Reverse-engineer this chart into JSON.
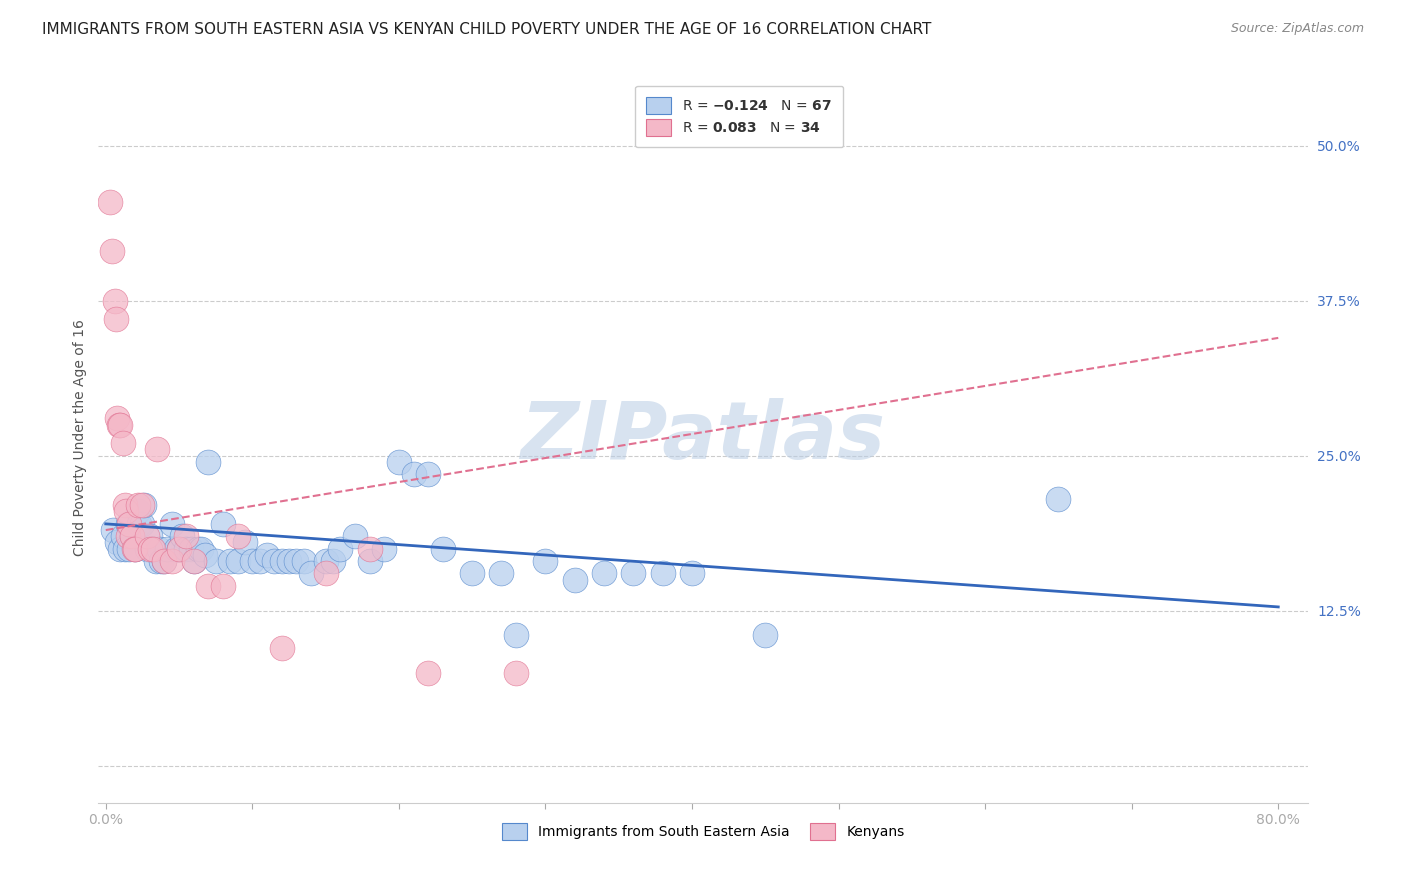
{
  "title": "IMMIGRANTS FROM SOUTH EASTERN ASIA VS KENYAN CHILD POVERTY UNDER THE AGE OF 16 CORRELATION CHART",
  "source": "Source: ZipAtlas.com",
  "ylabel": "Child Poverty Under the Age of 16",
  "y_ticks": [
    0.0,
    0.125,
    0.25,
    0.375,
    0.5
  ],
  "y_tick_labels": [
    "",
    "12.5%",
    "25.0%",
    "37.5%",
    "50.0%"
  ],
  "xlim": [
    -0.005,
    0.82
  ],
  "ylim": [
    -0.03,
    0.56
  ],
  "blue_scatter_x": [
    0.005,
    0.008,
    0.01,
    0.012,
    0.013,
    0.015,
    0.016,
    0.018,
    0.02,
    0.022,
    0.023,
    0.025,
    0.026,
    0.028,
    0.03,
    0.032,
    0.034,
    0.036,
    0.038,
    0.04,
    0.042,
    0.045,
    0.048,
    0.05,
    0.052,
    0.055,
    0.058,
    0.06,
    0.063,
    0.065,
    0.068,
    0.07,
    0.075,
    0.08,
    0.085,
    0.09,
    0.095,
    0.1,
    0.105,
    0.11,
    0.115,
    0.12,
    0.125,
    0.13,
    0.135,
    0.14,
    0.15,
    0.155,
    0.16,
    0.17,
    0.18,
    0.19,
    0.2,
    0.21,
    0.22,
    0.23,
    0.25,
    0.27,
    0.28,
    0.3,
    0.32,
    0.34,
    0.36,
    0.38,
    0.4,
    0.45,
    0.65
  ],
  "blue_scatter_y": [
    0.19,
    0.18,
    0.175,
    0.185,
    0.175,
    0.195,
    0.175,
    0.185,
    0.175,
    0.205,
    0.195,
    0.195,
    0.21,
    0.175,
    0.185,
    0.175,
    0.165,
    0.175,
    0.165,
    0.165,
    0.175,
    0.195,
    0.175,
    0.175,
    0.185,
    0.175,
    0.175,
    0.165,
    0.175,
    0.175,
    0.17,
    0.245,
    0.165,
    0.195,
    0.165,
    0.165,
    0.18,
    0.165,
    0.165,
    0.17,
    0.165,
    0.165,
    0.165,
    0.165,
    0.165,
    0.155,
    0.165,
    0.165,
    0.175,
    0.185,
    0.165,
    0.175,
    0.245,
    0.235,
    0.235,
    0.175,
    0.155,
    0.155,
    0.105,
    0.165,
    0.15,
    0.155,
    0.155,
    0.155,
    0.155,
    0.105,
    0.215
  ],
  "pink_scatter_x": [
    0.003,
    0.004,
    0.006,
    0.007,
    0.008,
    0.009,
    0.01,
    0.012,
    0.013,
    0.014,
    0.015,
    0.016,
    0.018,
    0.019,
    0.02,
    0.022,
    0.025,
    0.028,
    0.03,
    0.032,
    0.035,
    0.04,
    0.045,
    0.05,
    0.055,
    0.06,
    0.07,
    0.08,
    0.09,
    0.12,
    0.15,
    0.18,
    0.22,
    0.28
  ],
  "pink_scatter_y": [
    0.455,
    0.415,
    0.375,
    0.36,
    0.28,
    0.275,
    0.275,
    0.26,
    0.21,
    0.205,
    0.185,
    0.195,
    0.185,
    0.175,
    0.175,
    0.21,
    0.21,
    0.185,
    0.175,
    0.175,
    0.255,
    0.165,
    0.165,
    0.175,
    0.185,
    0.165,
    0.145,
    0.145,
    0.185,
    0.095,
    0.155,
    0.175,
    0.075,
    0.075
  ],
  "blue_line_x": [
    0.0,
    0.8
  ],
  "blue_line_y": [
    0.195,
    0.128
  ],
  "pink_line_x": [
    0.0,
    0.8
  ],
  "pink_line_y": [
    0.19,
    0.345
  ],
  "watermark": "ZIPatlas",
  "blue_color": "#b8d0ee",
  "pink_color": "#f4b8c8",
  "blue_edge_color": "#5588cc",
  "pink_edge_color": "#e07090",
  "blue_line_color": "#3366bb",
  "pink_line_color": "#e07090",
  "background_color": "#ffffff",
  "grid_color": "#cccccc",
  "title_fontsize": 11,
  "axis_label_fontsize": 10,
  "tick_label_fontsize": 10,
  "tick_label_color_right": "#4472c4"
}
